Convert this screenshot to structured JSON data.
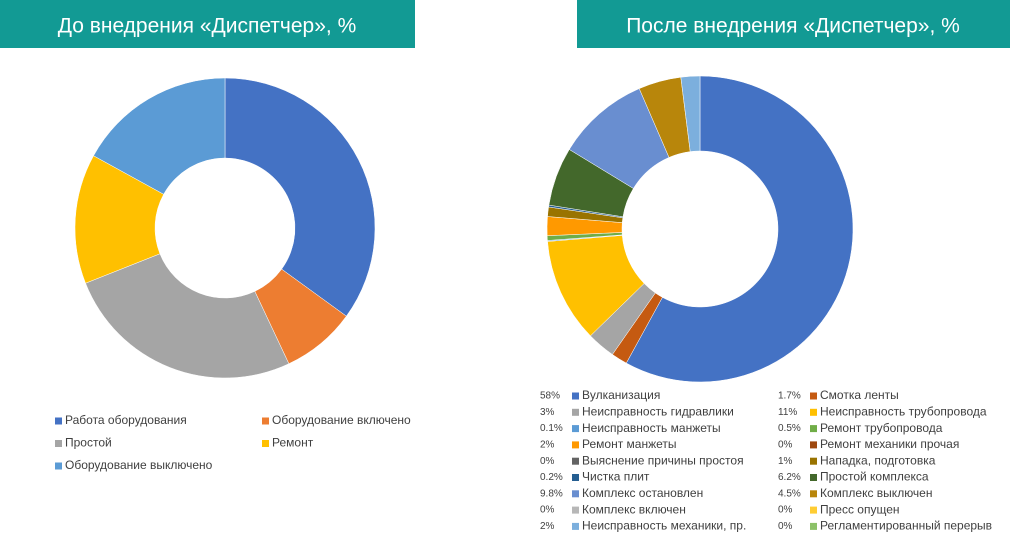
{
  "chart_data": [
    {
      "type": "donut",
      "title": "До внедрения «Диспетчер», %",
      "legend": "bottom",
      "categories": [
        "Работа оборудования",
        "Оборудование включено",
        "Простой",
        "Ремонт",
        "Оборудование выключено"
      ],
      "values": [
        35,
        8,
        26,
        14,
        17
      ],
      "colors": [
        "#4472c4",
        "#ed7d31",
        "#a5a5a5",
        "#ffc000",
        "#5b9bd5"
      ]
    },
    {
      "type": "donut",
      "title": "После внедрения «Диспетчер», %",
      "legend": "bottom",
      "categories": [
        "Вулканизация",
        "Смотка ленты",
        "Неисправность гидравлики",
        "Неисправность трубопровода",
        "Неисправность манжеты",
        "Ремонт трубопровода",
        "Ремонт манжеты",
        "Ремонт механики прочая",
        "Выяснение причины простоя",
        "Нападка, подготовка",
        "Чистка плит",
        "Простой комплекса",
        "Комплекс остановлен",
        "Комплекс выключен",
        "Комплекс включен",
        "Пресс опущен",
        "Неисправность механики, пр.",
        "Регламентированный перерыв"
      ],
      "values": [
        58,
        1.7,
        3,
        11,
        0.1,
        0.5,
        2,
        0,
        0,
        1,
        0.2,
        6.2,
        9.8,
        4.5,
        0,
        0,
        2,
        0
      ],
      "value_labels": [
        "58%",
        "1.7%",
        "3%",
        "11%",
        "0.1%",
        "0.5%",
        "2%",
        "0%",
        "0%",
        "1%",
        "0.2%",
        "6.2%",
        "9.8%",
        "4.5%",
        "0%",
        "0%",
        "2%",
        "0%"
      ],
      "colors": [
        "#4472c4",
        "#c55a11",
        "#a5a5a5",
        "#ffc000",
        "#5b9bd5",
        "#70ad47",
        "#ff9900",
        "#9e480e",
        "#636363",
        "#997300",
        "#255e91",
        "#43682b",
        "#698ed0",
        "#b8860b",
        "#b7b7b7",
        "#ffcd33",
        "#7cafdd",
        "#8cc168"
      ]
    }
  ]
}
